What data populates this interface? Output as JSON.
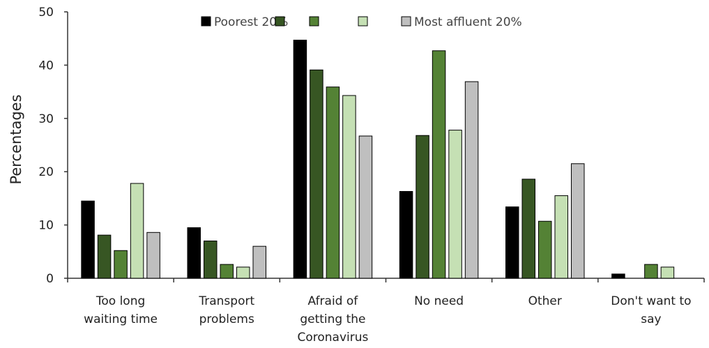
{
  "chart_data": {
    "type": "bar",
    "title": "",
    "xlabel": "",
    "ylabel": "Percentages",
    "ylim": [
      0,
      50
    ],
    "yticks": [
      "0",
      "10",
      "20",
      "30",
      "40",
      "50"
    ],
    "legend_position": "top",
    "grid": false,
    "categories": [
      [
        "Too long",
        "waiting time"
      ],
      [
        "Transport",
        "problems"
      ],
      [
        "Afraid of",
        "getting the",
        "Coronavirus"
      ],
      [
        "No need"
      ],
      [
        "Other"
      ],
      [
        "Don't want to",
        "say"
      ]
    ],
    "series": [
      {
        "name": "Poorest 20%",
        "color": "#000000",
        "values": [
          14.5,
          9.5,
          44.7,
          16.3,
          13.4,
          0.8
        ]
      },
      {
        "name": "",
        "color": "#375623",
        "values": [
          8.1,
          7.0,
          39.1,
          26.8,
          18.6,
          0
        ]
      },
      {
        "name": "",
        "color": "#548235",
        "values": [
          5.2,
          2.6,
          35.9,
          42.7,
          10.7,
          2.6
        ]
      },
      {
        "name": "",
        "color": "#c5e0b4",
        "values": [
          17.8,
          2.1,
          34.3,
          27.8,
          15.5,
          2.1
        ]
      },
      {
        "name": "Most affluent 20%",
        "color": "#bfbfbf",
        "values": [
          8.6,
          6.0,
          26.7,
          36.9,
          21.5,
          0
        ]
      }
    ]
  }
}
